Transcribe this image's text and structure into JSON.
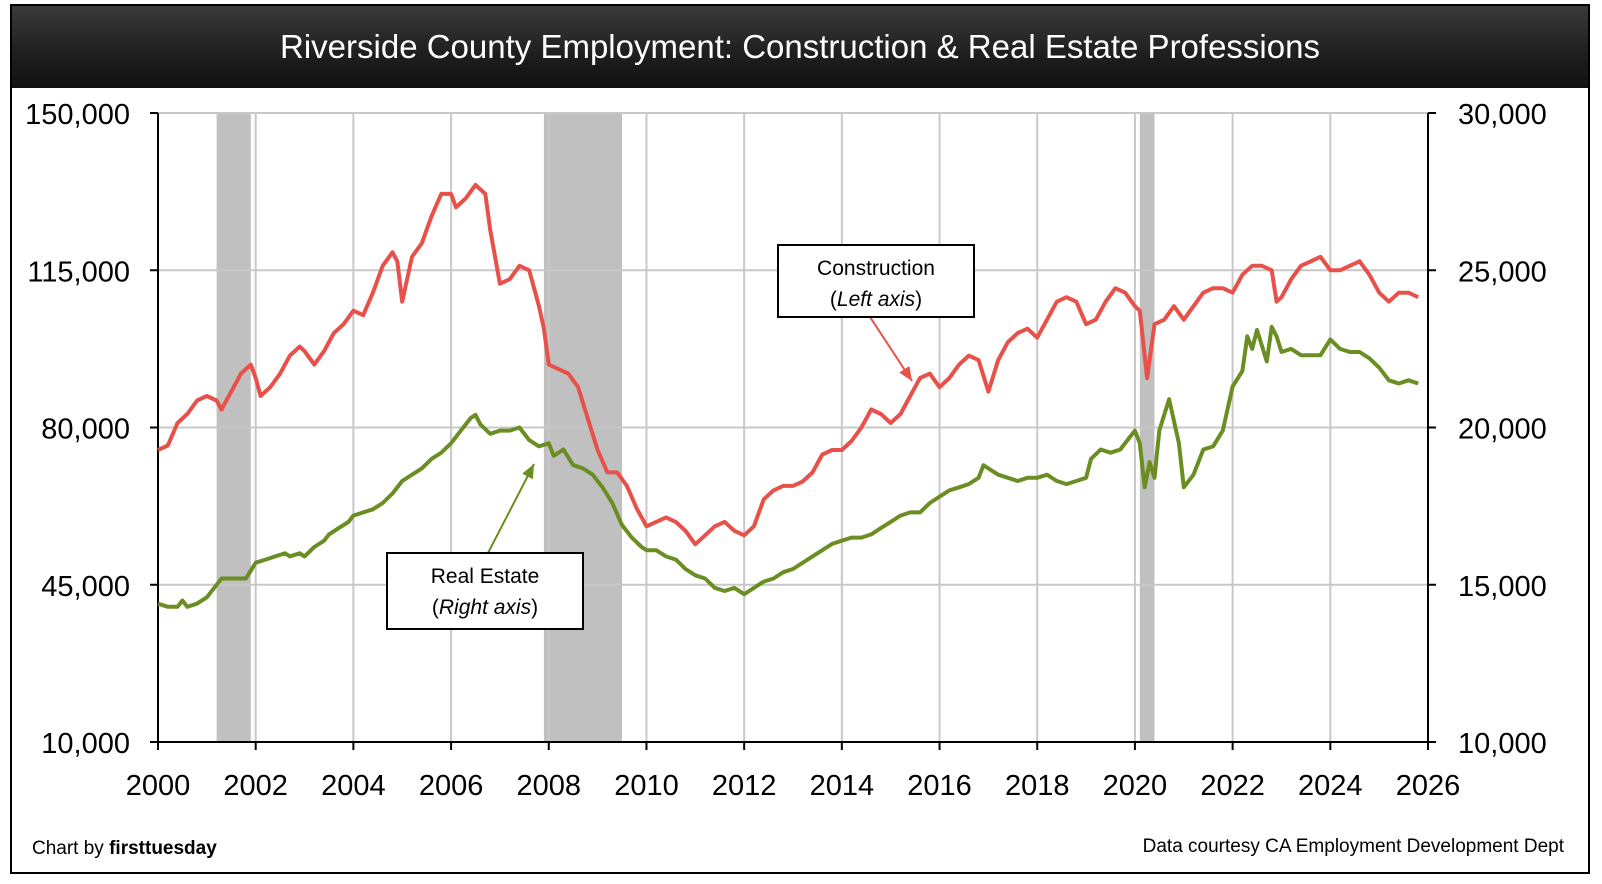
{
  "chart_data": {
    "type": "line",
    "title": "Riverside County Employment: Construction & Real Estate Professions",
    "x_range": [
      2000,
      2026
    ],
    "x_ticks": [
      "2000",
      "2002",
      "2004",
      "2006",
      "2008",
      "2010",
      "2012",
      "2014",
      "2016",
      "2018",
      "2020",
      "2022",
      "2024",
      "2026"
    ],
    "y_left": {
      "range": [
        10000,
        150000
      ],
      "ticks": [
        "10,000",
        "45,000",
        "80,000",
        "115,000",
        "150,000"
      ]
    },
    "y_right": {
      "range": [
        10000,
        30000
      ],
      "ticks": [
        "10,000",
        "15,000",
        "20,000",
        "25,000",
        "30,000"
      ]
    },
    "recession_bands": [
      [
        2001.2,
        2001.9
      ],
      [
        2007.9,
        2009.5
      ],
      [
        2020.1,
        2020.4
      ]
    ],
    "series": [
      {
        "name": "Construction",
        "axis": "left",
        "color": "#e8514a",
        "points": [
          [
            2000.0,
            75000
          ],
          [
            2000.2,
            76000
          ],
          [
            2000.4,
            81000
          ],
          [
            2000.6,
            83000
          ],
          [
            2000.8,
            86000
          ],
          [
            2001.0,
            87000
          ],
          [
            2001.2,
            86000
          ],
          [
            2001.3,
            84000
          ],
          [
            2001.5,
            88000
          ],
          [
            2001.7,
            92000
          ],
          [
            2001.9,
            94000
          ],
          [
            2002.0,
            91000
          ],
          [
            2002.1,
            87000
          ],
          [
            2002.3,
            89000
          ],
          [
            2002.5,
            92000
          ],
          [
            2002.7,
            96000
          ],
          [
            2002.9,
            98000
          ],
          [
            2003.0,
            97000
          ],
          [
            2003.2,
            94000
          ],
          [
            2003.4,
            97000
          ],
          [
            2003.6,
            101000
          ],
          [
            2003.8,
            103000
          ],
          [
            2004.0,
            106000
          ],
          [
            2004.2,
            105000
          ],
          [
            2004.4,
            110000
          ],
          [
            2004.6,
            116000
          ],
          [
            2004.8,
            119000
          ],
          [
            2004.9,
            117000
          ],
          [
            2005.0,
            108000
          ],
          [
            2005.2,
            118000
          ],
          [
            2005.4,
            121000
          ],
          [
            2005.6,
            127000
          ],
          [
            2005.8,
            132000
          ],
          [
            2006.0,
            132000
          ],
          [
            2006.1,
            129000
          ],
          [
            2006.3,
            131000
          ],
          [
            2006.5,
            134000
          ],
          [
            2006.7,
            132000
          ],
          [
            2006.8,
            124000
          ],
          [
            2007.0,
            112000
          ],
          [
            2007.2,
            113000
          ],
          [
            2007.4,
            116000
          ],
          [
            2007.6,
            115000
          ],
          [
            2007.8,
            107000
          ],
          [
            2007.9,
            102000
          ],
          [
            2008.0,
            94000
          ],
          [
            2008.2,
            93000
          ],
          [
            2008.4,
            92000
          ],
          [
            2008.6,
            89000
          ],
          [
            2008.8,
            82000
          ],
          [
            2009.0,
            75000
          ],
          [
            2009.2,
            70000
          ],
          [
            2009.4,
            70000
          ],
          [
            2009.6,
            67000
          ],
          [
            2009.8,
            62000
          ],
          [
            2010.0,
            58000
          ],
          [
            2010.2,
            59000
          ],
          [
            2010.4,
            60000
          ],
          [
            2010.6,
            59000
          ],
          [
            2010.8,
            57000
          ],
          [
            2011.0,
            54000
          ],
          [
            2011.2,
            56000
          ],
          [
            2011.4,
            58000
          ],
          [
            2011.6,
            59000
          ],
          [
            2011.8,
            57000
          ],
          [
            2012.0,
            56000
          ],
          [
            2012.2,
            58000
          ],
          [
            2012.4,
            64000
          ],
          [
            2012.6,
            66000
          ],
          [
            2012.8,
            67000
          ],
          [
            2013.0,
            67000
          ],
          [
            2013.2,
            68000
          ],
          [
            2013.4,
            70000
          ],
          [
            2013.6,
            74000
          ],
          [
            2013.8,
            75000
          ],
          [
            2014.0,
            75000
          ],
          [
            2014.2,
            77000
          ],
          [
            2014.4,
            80000
          ],
          [
            2014.6,
            84000
          ],
          [
            2014.8,
            83000
          ],
          [
            2015.0,
            81000
          ],
          [
            2015.2,
            83000
          ],
          [
            2015.4,
            87000
          ],
          [
            2015.6,
            91000
          ],
          [
            2015.8,
            92000
          ],
          [
            2016.0,
            89000
          ],
          [
            2016.2,
            91000
          ],
          [
            2016.4,
            94000
          ],
          [
            2016.6,
            96000
          ],
          [
            2016.8,
            95000
          ],
          [
            2017.0,
            88000
          ],
          [
            2017.2,
            95000
          ],
          [
            2017.4,
            99000
          ],
          [
            2017.6,
            101000
          ],
          [
            2017.8,
            102000
          ],
          [
            2018.0,
            100000
          ],
          [
            2018.2,
            104000
          ],
          [
            2018.4,
            108000
          ],
          [
            2018.6,
            109000
          ],
          [
            2018.8,
            108000
          ],
          [
            2019.0,
            103000
          ],
          [
            2019.2,
            104000
          ],
          [
            2019.4,
            108000
          ],
          [
            2019.6,
            111000
          ],
          [
            2019.8,
            110000
          ],
          [
            2020.0,
            107000
          ],
          [
            2020.1,
            106000
          ],
          [
            2020.25,
            91000
          ],
          [
            2020.4,
            103000
          ],
          [
            2020.6,
            104000
          ],
          [
            2020.8,
            107000
          ],
          [
            2021.0,
            104000
          ],
          [
            2021.2,
            107000
          ],
          [
            2021.4,
            110000
          ],
          [
            2021.6,
            111000
          ],
          [
            2021.8,
            111000
          ],
          [
            2022.0,
            110000
          ],
          [
            2022.2,
            114000
          ],
          [
            2022.4,
            116000
          ],
          [
            2022.6,
            116000
          ],
          [
            2022.8,
            115000
          ],
          [
            2022.9,
            108000
          ],
          [
            2023.0,
            109000
          ],
          [
            2023.2,
            113000
          ],
          [
            2023.4,
            116000
          ],
          [
            2023.6,
            117000
          ],
          [
            2023.8,
            118000
          ],
          [
            2024.0,
            115000
          ],
          [
            2024.2,
            115000
          ],
          [
            2024.4,
            116000
          ],
          [
            2024.6,
            117000
          ],
          [
            2024.8,
            114000
          ],
          [
            2025.0,
            110000
          ],
          [
            2025.2,
            108000
          ],
          [
            2025.4,
            110000
          ],
          [
            2025.6,
            110000
          ],
          [
            2025.8,
            109000
          ]
        ]
      },
      {
        "name": "Real Estate",
        "axis": "right",
        "color": "#6b8e23",
        "points": [
          [
            2000.0,
            14400
          ],
          [
            2000.2,
            14300
          ],
          [
            2000.4,
            14300
          ],
          [
            2000.5,
            14500
          ],
          [
            2000.6,
            14300
          ],
          [
            2000.8,
            14400
          ],
          [
            2001.0,
            14600
          ],
          [
            2001.2,
            15000
          ],
          [
            2001.3,
            15200
          ],
          [
            2001.5,
            15200
          ],
          [
            2001.7,
            15200
          ],
          [
            2001.8,
            15200
          ],
          [
            2002.0,
            15700
          ],
          [
            2002.2,
            15800
          ],
          [
            2002.4,
            15900
          ],
          [
            2002.6,
            16000
          ],
          [
            2002.7,
            15900
          ],
          [
            2002.9,
            16000
          ],
          [
            2003.0,
            15900
          ],
          [
            2003.2,
            16200
          ],
          [
            2003.4,
            16400
          ],
          [
            2003.5,
            16600
          ],
          [
            2003.7,
            16800
          ],
          [
            2003.9,
            17000
          ],
          [
            2004.0,
            17200
          ],
          [
            2004.2,
            17300
          ],
          [
            2004.4,
            17400
          ],
          [
            2004.6,
            17600
          ],
          [
            2004.8,
            17900
          ],
          [
            2005.0,
            18300
          ],
          [
            2005.2,
            18500
          ],
          [
            2005.4,
            18700
          ],
          [
            2005.6,
            19000
          ],
          [
            2005.8,
            19200
          ],
          [
            2006.0,
            19500
          ],
          [
            2006.2,
            19900
          ],
          [
            2006.4,
            20300
          ],
          [
            2006.5,
            20400
          ],
          [
            2006.6,
            20100
          ],
          [
            2006.8,
            19800
          ],
          [
            2007.0,
            19900
          ],
          [
            2007.2,
            19900
          ],
          [
            2007.4,
            20000
          ],
          [
            2007.6,
            19600
          ],
          [
            2007.8,
            19400
          ],
          [
            2008.0,
            19500
          ],
          [
            2008.1,
            19100
          ],
          [
            2008.3,
            19300
          ],
          [
            2008.5,
            18800
          ],
          [
            2008.7,
            18700
          ],
          [
            2008.9,
            18500
          ],
          [
            2009.1,
            18100
          ],
          [
            2009.3,
            17600
          ],
          [
            2009.5,
            16900
          ],
          [
            2009.7,
            16500
          ],
          [
            2009.9,
            16200
          ],
          [
            2010.0,
            16100
          ],
          [
            2010.2,
            16100
          ],
          [
            2010.4,
            15900
          ],
          [
            2010.6,
            15800
          ],
          [
            2010.8,
            15500
          ],
          [
            2011.0,
            15300
          ],
          [
            2011.2,
            15200
          ],
          [
            2011.4,
            14900
          ],
          [
            2011.6,
            14800
          ],
          [
            2011.8,
            14900
          ],
          [
            2012.0,
            14700
          ],
          [
            2012.2,
            14900
          ],
          [
            2012.4,
            15100
          ],
          [
            2012.6,
            15200
          ],
          [
            2012.8,
            15400
          ],
          [
            2013.0,
            15500
          ],
          [
            2013.2,
            15700
          ],
          [
            2013.4,
            15900
          ],
          [
            2013.6,
            16100
          ],
          [
            2013.8,
            16300
          ],
          [
            2014.0,
            16400
          ],
          [
            2014.2,
            16500
          ],
          [
            2014.4,
            16500
          ],
          [
            2014.6,
            16600
          ],
          [
            2014.8,
            16800
          ],
          [
            2015.0,
            17000
          ],
          [
            2015.2,
            17200
          ],
          [
            2015.4,
            17300
          ],
          [
            2015.6,
            17300
          ],
          [
            2015.8,
            17600
          ],
          [
            2016.0,
            17800
          ],
          [
            2016.2,
            18000
          ],
          [
            2016.4,
            18100
          ],
          [
            2016.6,
            18200
          ],
          [
            2016.8,
            18400
          ],
          [
            2016.9,
            18800
          ],
          [
            2017.0,
            18700
          ],
          [
            2017.2,
            18500
          ],
          [
            2017.4,
            18400
          ],
          [
            2017.6,
            18300
          ],
          [
            2017.8,
            18400
          ],
          [
            2018.0,
            18400
          ],
          [
            2018.2,
            18500
          ],
          [
            2018.4,
            18300
          ],
          [
            2018.6,
            18200
          ],
          [
            2018.8,
            18300
          ],
          [
            2019.0,
            18400
          ],
          [
            2019.1,
            19000
          ],
          [
            2019.3,
            19300
          ],
          [
            2019.5,
            19200
          ],
          [
            2019.7,
            19300
          ],
          [
            2019.9,
            19700
          ],
          [
            2020.0,
            19900
          ],
          [
            2020.1,
            19500
          ],
          [
            2020.2,
            18100
          ],
          [
            2020.3,
            18900
          ],
          [
            2020.4,
            18400
          ],
          [
            2020.5,
            19900
          ],
          [
            2020.7,
            20900
          ],
          [
            2020.9,
            19500
          ],
          [
            2021.0,
            18100
          ],
          [
            2021.2,
            18500
          ],
          [
            2021.4,
            19300
          ],
          [
            2021.6,
            19400
          ],
          [
            2021.8,
            19900
          ],
          [
            2022.0,
            21300
          ],
          [
            2022.2,
            21800
          ],
          [
            2022.3,
            22900
          ],
          [
            2022.4,
            22500
          ],
          [
            2022.5,
            23100
          ],
          [
            2022.6,
            22600
          ],
          [
            2022.7,
            22100
          ],
          [
            2022.8,
            23200
          ],
          [
            2022.9,
            22900
          ],
          [
            2023.0,
            22400
          ],
          [
            2023.2,
            22500
          ],
          [
            2023.4,
            22300
          ],
          [
            2023.6,
            22300
          ],
          [
            2023.8,
            22300
          ],
          [
            2024.0,
            22800
          ],
          [
            2024.2,
            22500
          ],
          [
            2024.4,
            22400
          ],
          [
            2024.6,
            22400
          ],
          [
            2024.8,
            22200
          ],
          [
            2025.0,
            21900
          ],
          [
            2025.2,
            21500
          ],
          [
            2025.4,
            21400
          ],
          [
            2025.6,
            21500
          ],
          [
            2025.8,
            21400
          ]
        ]
      }
    ],
    "annotations": [
      {
        "line1": "Construction",
        "line2": "Left axis"
      },
      {
        "line1": "Real Estate",
        "line2": "Right axis"
      }
    ]
  },
  "credits": {
    "left_prefix": "Chart by ",
    "left_brand": "firsttuesday",
    "right": "Data courtesy CA Employment Development Dept"
  },
  "colors": {
    "construction": "#e8514a",
    "real_estate": "#6b8e23",
    "recession": "#c0c0c0",
    "grid": "#c8c8c8"
  }
}
